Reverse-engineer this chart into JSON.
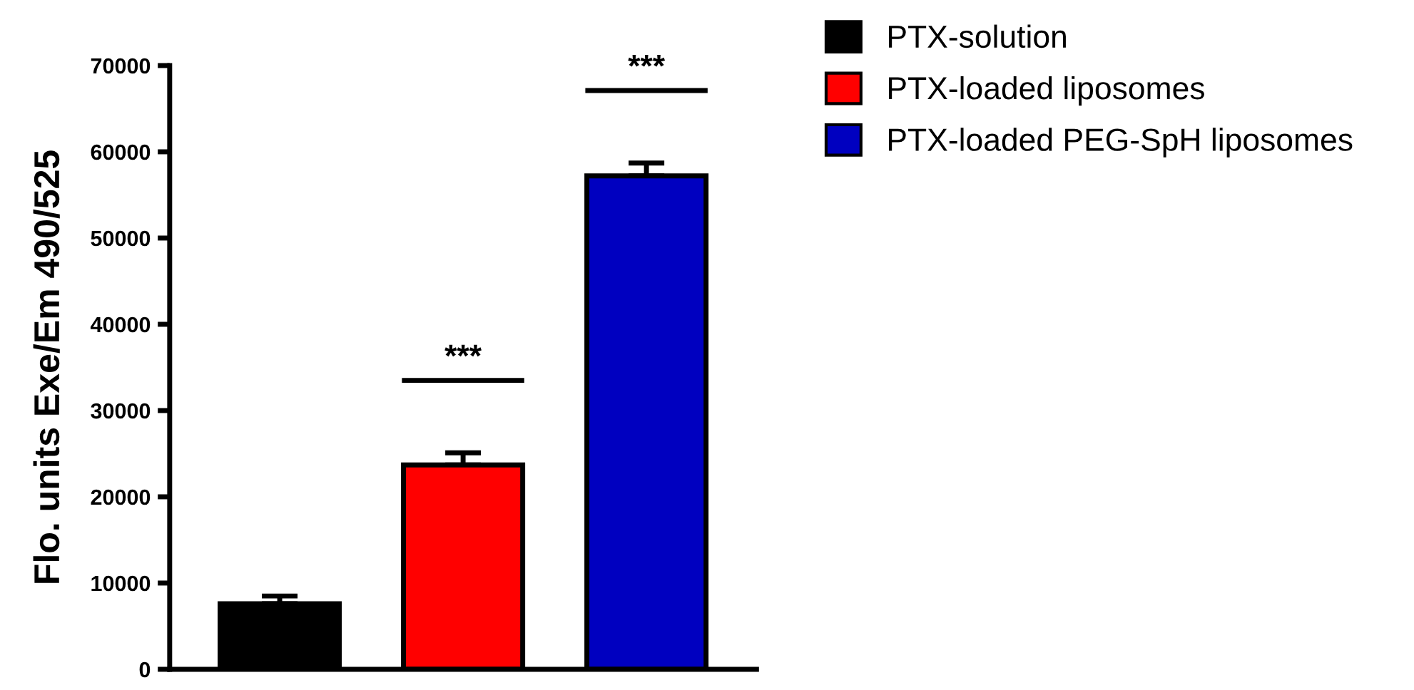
{
  "chart_data": {
    "type": "bar",
    "ylabel": "Flo. units Exe/Em 490/525",
    "categories": [
      null,
      null,
      null
    ],
    "series": [
      {
        "name": "PTX-solution",
        "color": "#000000",
        "values": [
          7600,
          null,
          null
        ],
        "errors": [
          900,
          null,
          null
        ]
      },
      {
        "name": "PTX-loaded liposomes",
        "color": "#ff0000",
        "values": [
          null,
          23700,
          null
        ],
        "errors": [
          null,
          1400,
          null
        ]
      },
      {
        "name": "PTX-loaded PEG-SpH liposomes",
        "color": "#0000c0",
        "values": [
          null,
          null,
          57200
        ],
        "errors": [
          null,
          null,
          1500
        ]
      }
    ],
    "ylim": [
      0,
      70000
    ],
    "yticks": [
      0,
      10000,
      20000,
      30000,
      40000,
      50000,
      60000,
      70000
    ],
    "annotations": [
      "***",
      "***"
    ],
    "legend": "top right",
    "grid": false
  }
}
